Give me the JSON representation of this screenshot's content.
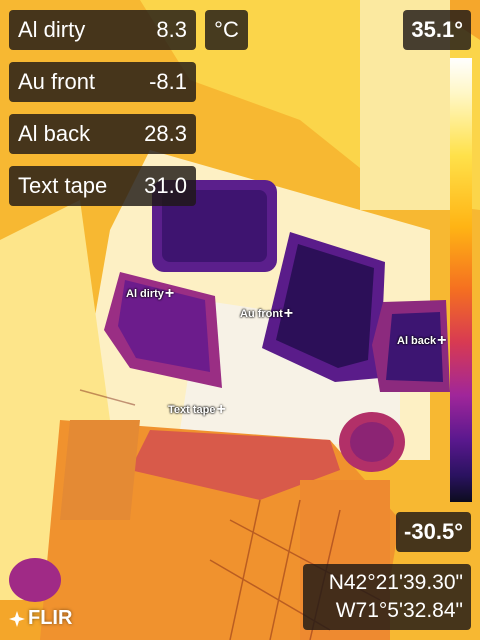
{
  "measurements": [
    {
      "label": "Al dirty",
      "value": "8.3"
    },
    {
      "label": "Au front",
      "value": "-8.1"
    },
    {
      "label": "Al back",
      "value": "28.3"
    },
    {
      "label": "Text tape",
      "value": "31.0"
    }
  ],
  "unit": "°C",
  "scale": {
    "max": "35.1°",
    "min": "-30.5°"
  },
  "markers": [
    {
      "label": "Al dirty"
    },
    {
      "label": "Au front"
    },
    {
      "label": "Al back"
    },
    {
      "label": "Text tape"
    }
  ],
  "gps": {
    "lat": "N42°21'39.30\"",
    "lon": "W71°5'32.84\""
  },
  "brand": "FLIR",
  "colors": {
    "palette": "iron",
    "scale_top": "#ffffff",
    "scale_bottom": "#0c0c1e"
  }
}
